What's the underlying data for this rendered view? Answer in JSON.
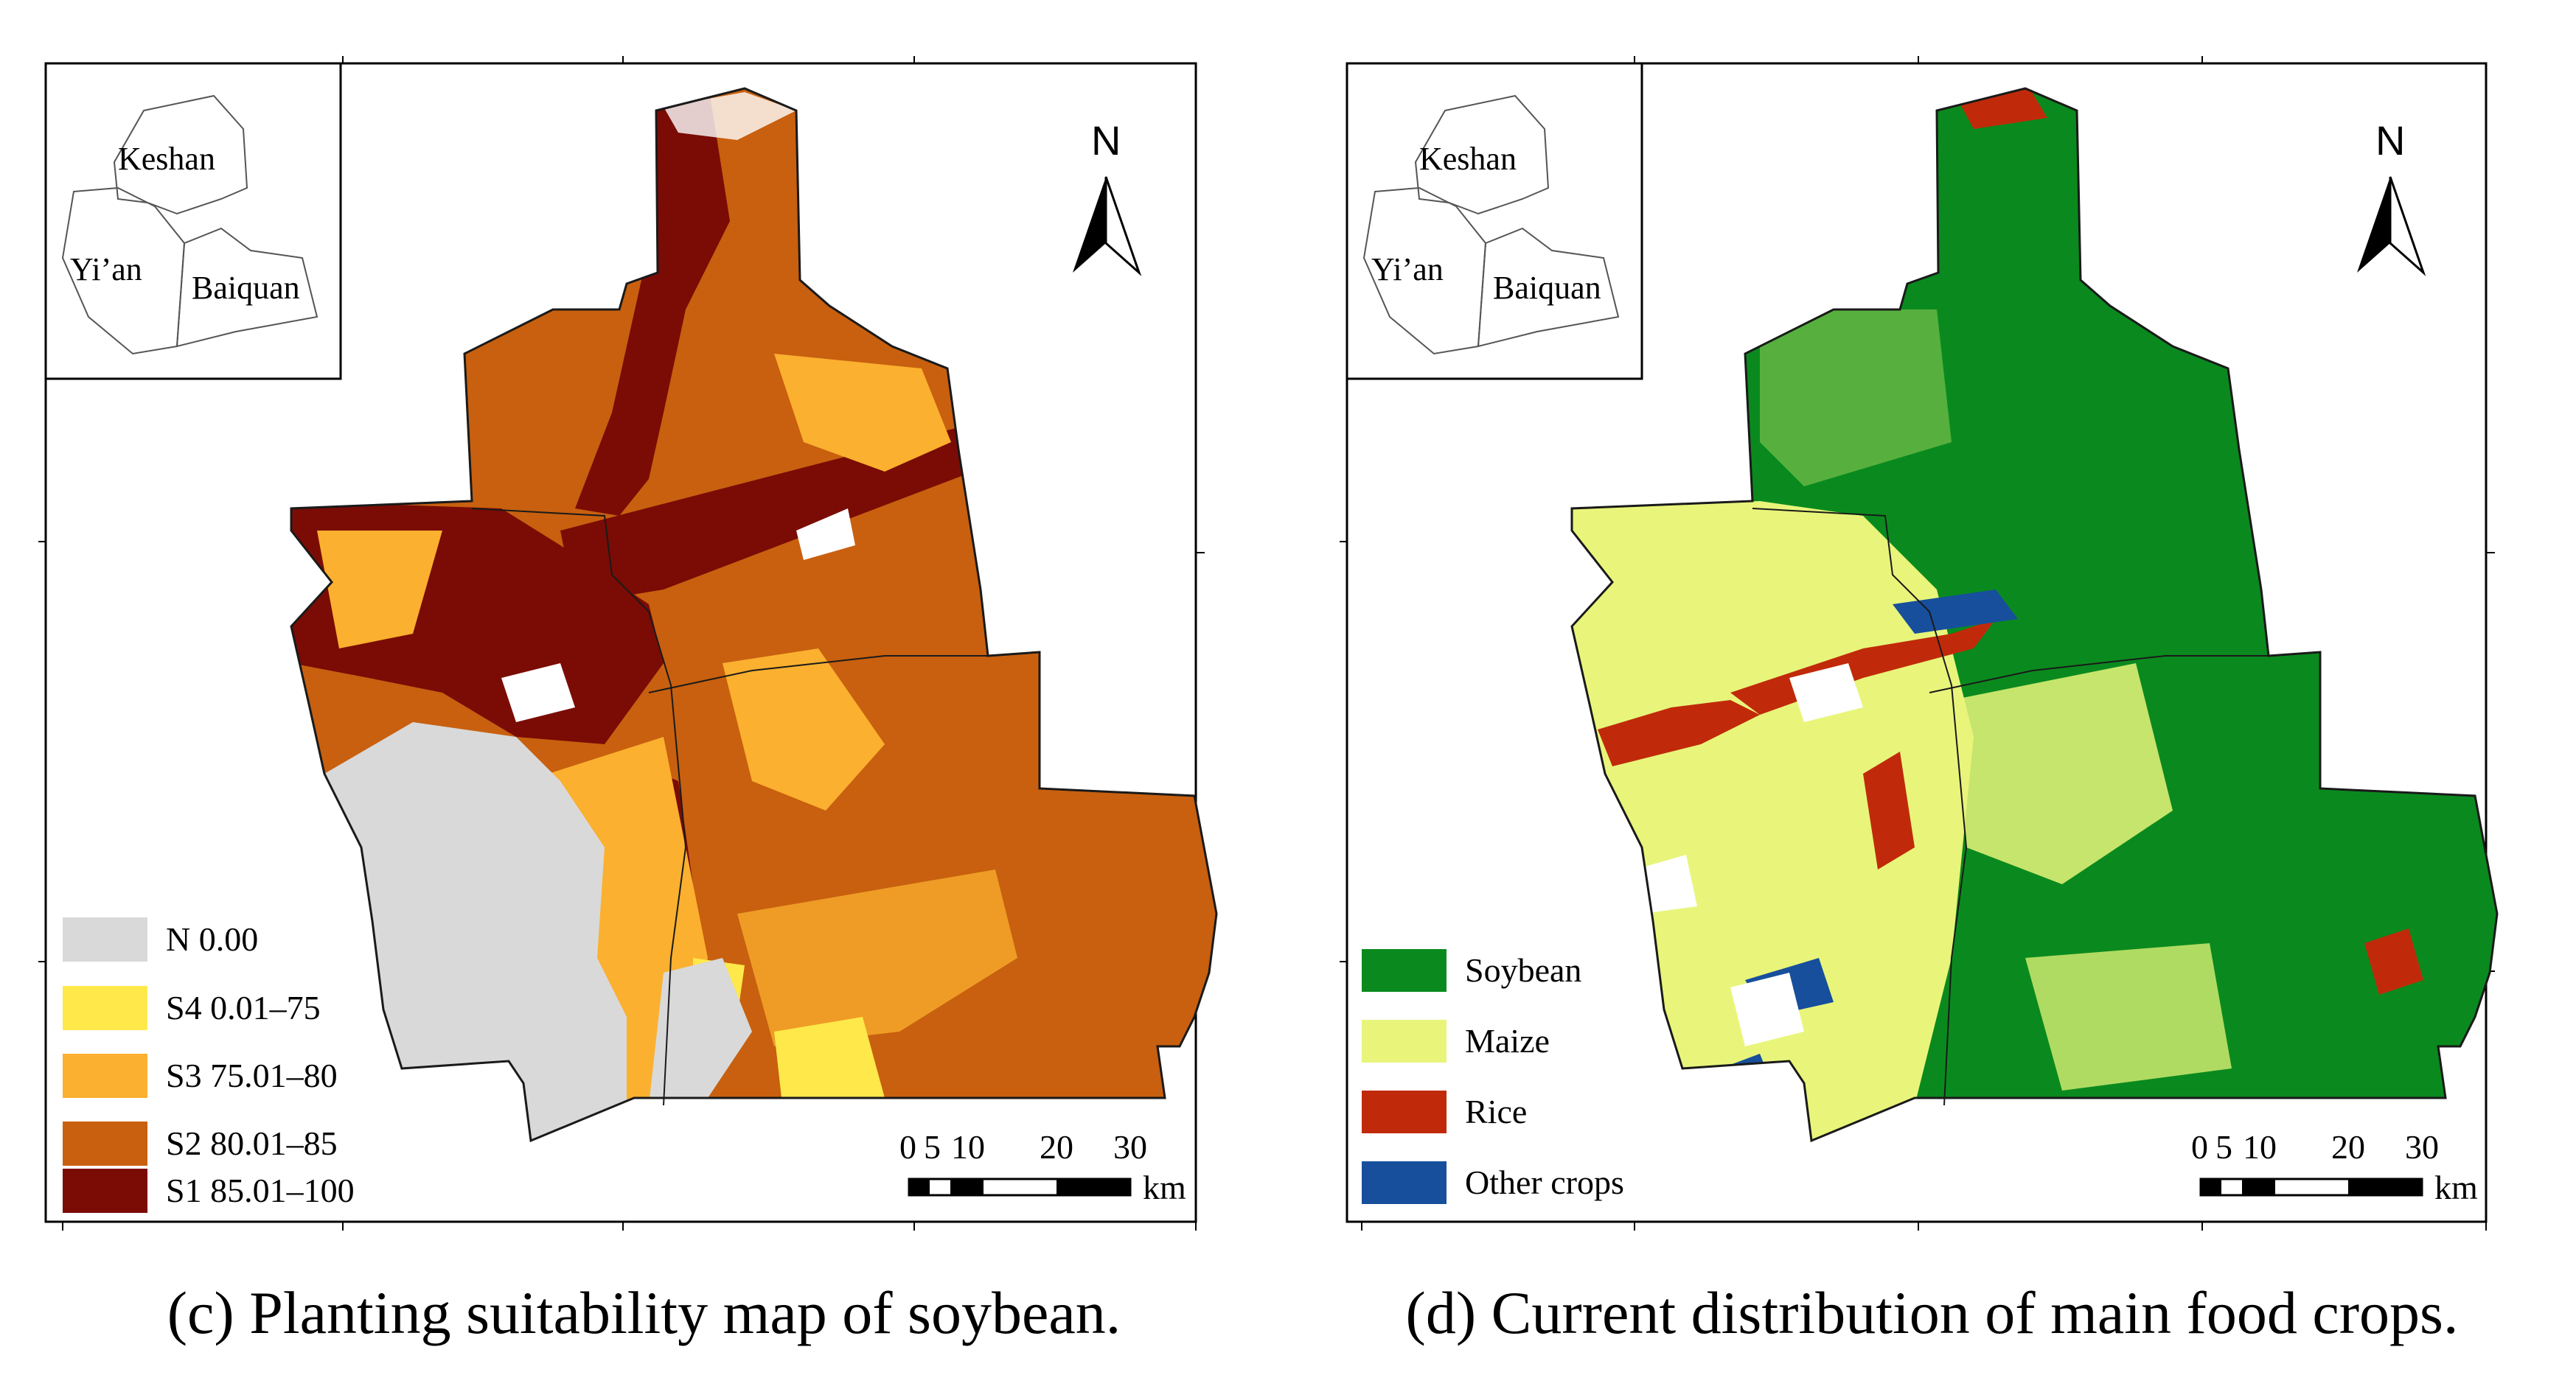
{
  "panels": {
    "c": {
      "caption": "(c) Planting suitability map of soybean.",
      "inset_labels": [
        "Keshan",
        "Yi’an",
        "Baiquan"
      ],
      "north_label": "N",
      "scale_ticks": [
        "0",
        "5",
        "10",
        "20",
        "30"
      ],
      "scale_unit": "km",
      "legend": [
        {
          "label": "N 0.00",
          "color": "#d9d9d9"
        },
        {
          "label": "S4 0.01–75",
          "color": "#ffe84a"
        },
        {
          "label": "S3 75.01–80",
          "color": "#fbb02f"
        },
        {
          "label": "S2 80.01–85",
          "color": "#c8600f"
        },
        {
          "label": "S1 85.01–100",
          "color": "#7a0c05"
        }
      ]
    },
    "d": {
      "caption": "(d) Current distribution of main food crops.",
      "inset_labels": [
        "Keshan",
        "Yi’an",
        "Baiquan"
      ],
      "north_label": "N",
      "scale_ticks": [
        "0",
        "5",
        "10",
        "20",
        "30"
      ],
      "scale_unit": "km",
      "legend": [
        {
          "label": "Soybean",
          "color": "#0a8a1e"
        },
        {
          "label": "Maize",
          "color": "#e8f57a"
        },
        {
          "label": "Rice",
          "color": "#c02a0a"
        },
        {
          "label": "Other crops",
          "color": "#174f9c"
        }
      ]
    }
  }
}
